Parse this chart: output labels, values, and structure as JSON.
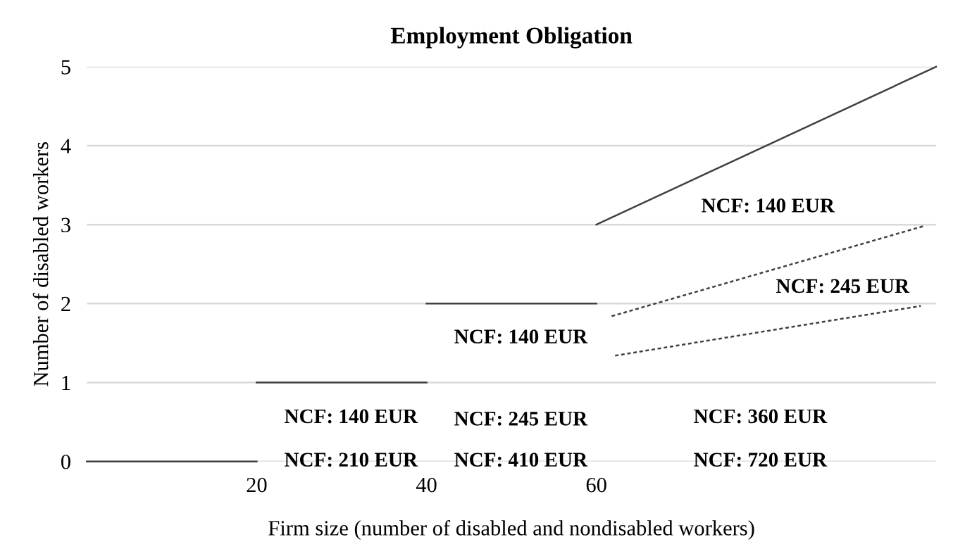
{
  "chart_data": {
    "type": "line",
    "title": "Employment Obligation",
    "xlabel": "Firm size (number of disabled and nondisabled workers)",
    "ylabel": "Number of disabled workers",
    "xlim": [
      0,
      100
    ],
    "xticks": [
      20,
      40,
      60
    ],
    "ylim": [
      0,
      5
    ],
    "yticks": [
      0,
      1,
      2,
      3,
      4,
      5
    ],
    "grid": "y",
    "marker": "none",
    "series": [
      {
        "color": "#404040",
        "x": [
          0,
          20
        ],
        "values": [
          0,
          0
        ],
        "line_style": "solid"
      },
      {
        "color": "#404040",
        "x": [
          20,
          40
        ],
        "values": [
          1,
          1
        ],
        "line_style": "solid"
      },
      {
        "color": "#404040",
        "x": [
          40,
          60
        ],
        "values": [
          2,
          2
        ],
        "line_style": "solid"
      },
      {
        "color": "#404040",
        "x": [
          60,
          100
        ],
        "values": [
          3,
          5
        ],
        "line_style": "solid"
      },
      {
        "color": "#404040",
        "x": [
          61.8,
          98.5
        ],
        "values": [
          1.84,
          2.98
        ],
        "line_style": "dotted"
      },
      {
        "color": "#404040",
        "x": [
          62.2,
          98.2
        ],
        "values": [
          1.34,
          1.97
        ],
        "line_style": "dotted"
      }
    ],
    "annotations": [
      "NCF: 210 EUR",
      "NCF: 140 EUR",
      "NCF: 410 EUR",
      "NCF: 245 EUR",
      "NCF: 140 EUR",
      "NCF: 720 EUR",
      "NCF: 360 EUR",
      "NCF: 140 EUR",
      "NCF: 245 EUR"
    ]
  }
}
